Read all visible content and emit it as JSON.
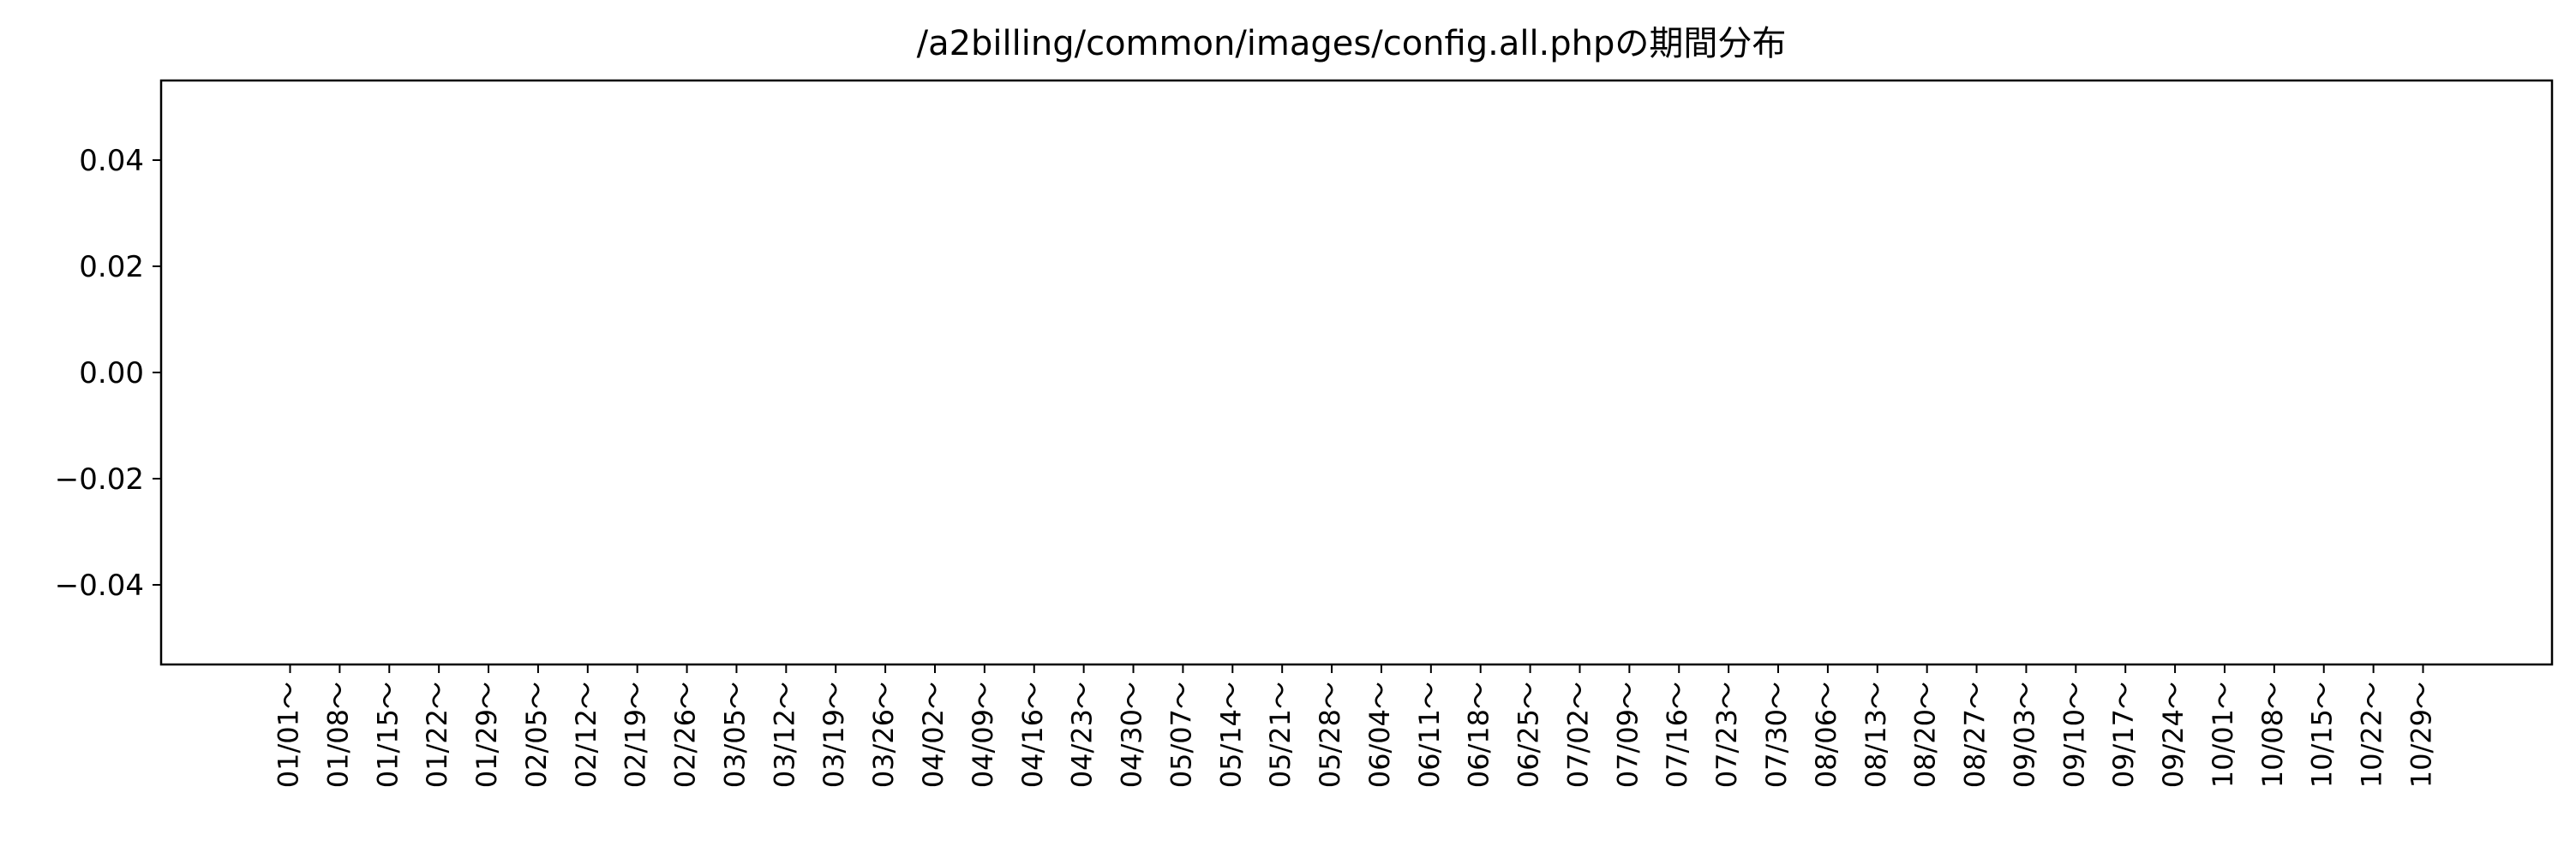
{
  "chart_data": {
    "type": "bar",
    "title": "/a2billing/common/images/config.all.phpの期間分布",
    "xlabel": "",
    "ylabel": "",
    "categories": [
      "01/01～",
      "01/08～",
      "01/15～",
      "01/22～",
      "01/29～",
      "02/05～",
      "02/12～",
      "02/19～",
      "02/26～",
      "03/05～",
      "03/12～",
      "03/19～",
      "03/26～",
      "04/02～",
      "04/09～",
      "04/16～",
      "04/23～",
      "04/30～",
      "05/07～",
      "05/14～",
      "05/21～",
      "05/28～",
      "06/04～",
      "06/11～",
      "06/18～",
      "06/25～",
      "07/02～",
      "07/09～",
      "07/16～",
      "07/23～",
      "07/30～",
      "08/06～",
      "08/13～",
      "08/20～",
      "08/27～",
      "09/03～",
      "09/10～",
      "09/17～",
      "09/24～",
      "10/01～",
      "10/08～",
      "10/15～",
      "10/22～",
      "10/29～"
    ],
    "values": [
      0,
      0,
      0,
      0,
      0,
      0,
      0,
      0,
      0,
      0,
      0,
      0,
      0,
      0,
      0,
      0,
      0,
      0,
      0,
      0,
      0,
      0,
      0,
      0,
      0,
      0,
      0,
      0,
      0,
      0,
      0,
      0,
      0,
      0,
      0,
      0,
      0,
      0,
      0,
      0,
      0,
      0,
      0,
      0
    ],
    "yticks": [
      0.04,
      0.02,
      0.0,
      -0.02,
      -0.04
    ],
    "ytick_labels": [
      "0.04",
      "0.02",
      "0.00",
      "−0.02",
      "−0.04"
    ],
    "ylim": [
      -0.055,
      0.055
    ],
    "grid": false,
    "legend": "none"
  }
}
